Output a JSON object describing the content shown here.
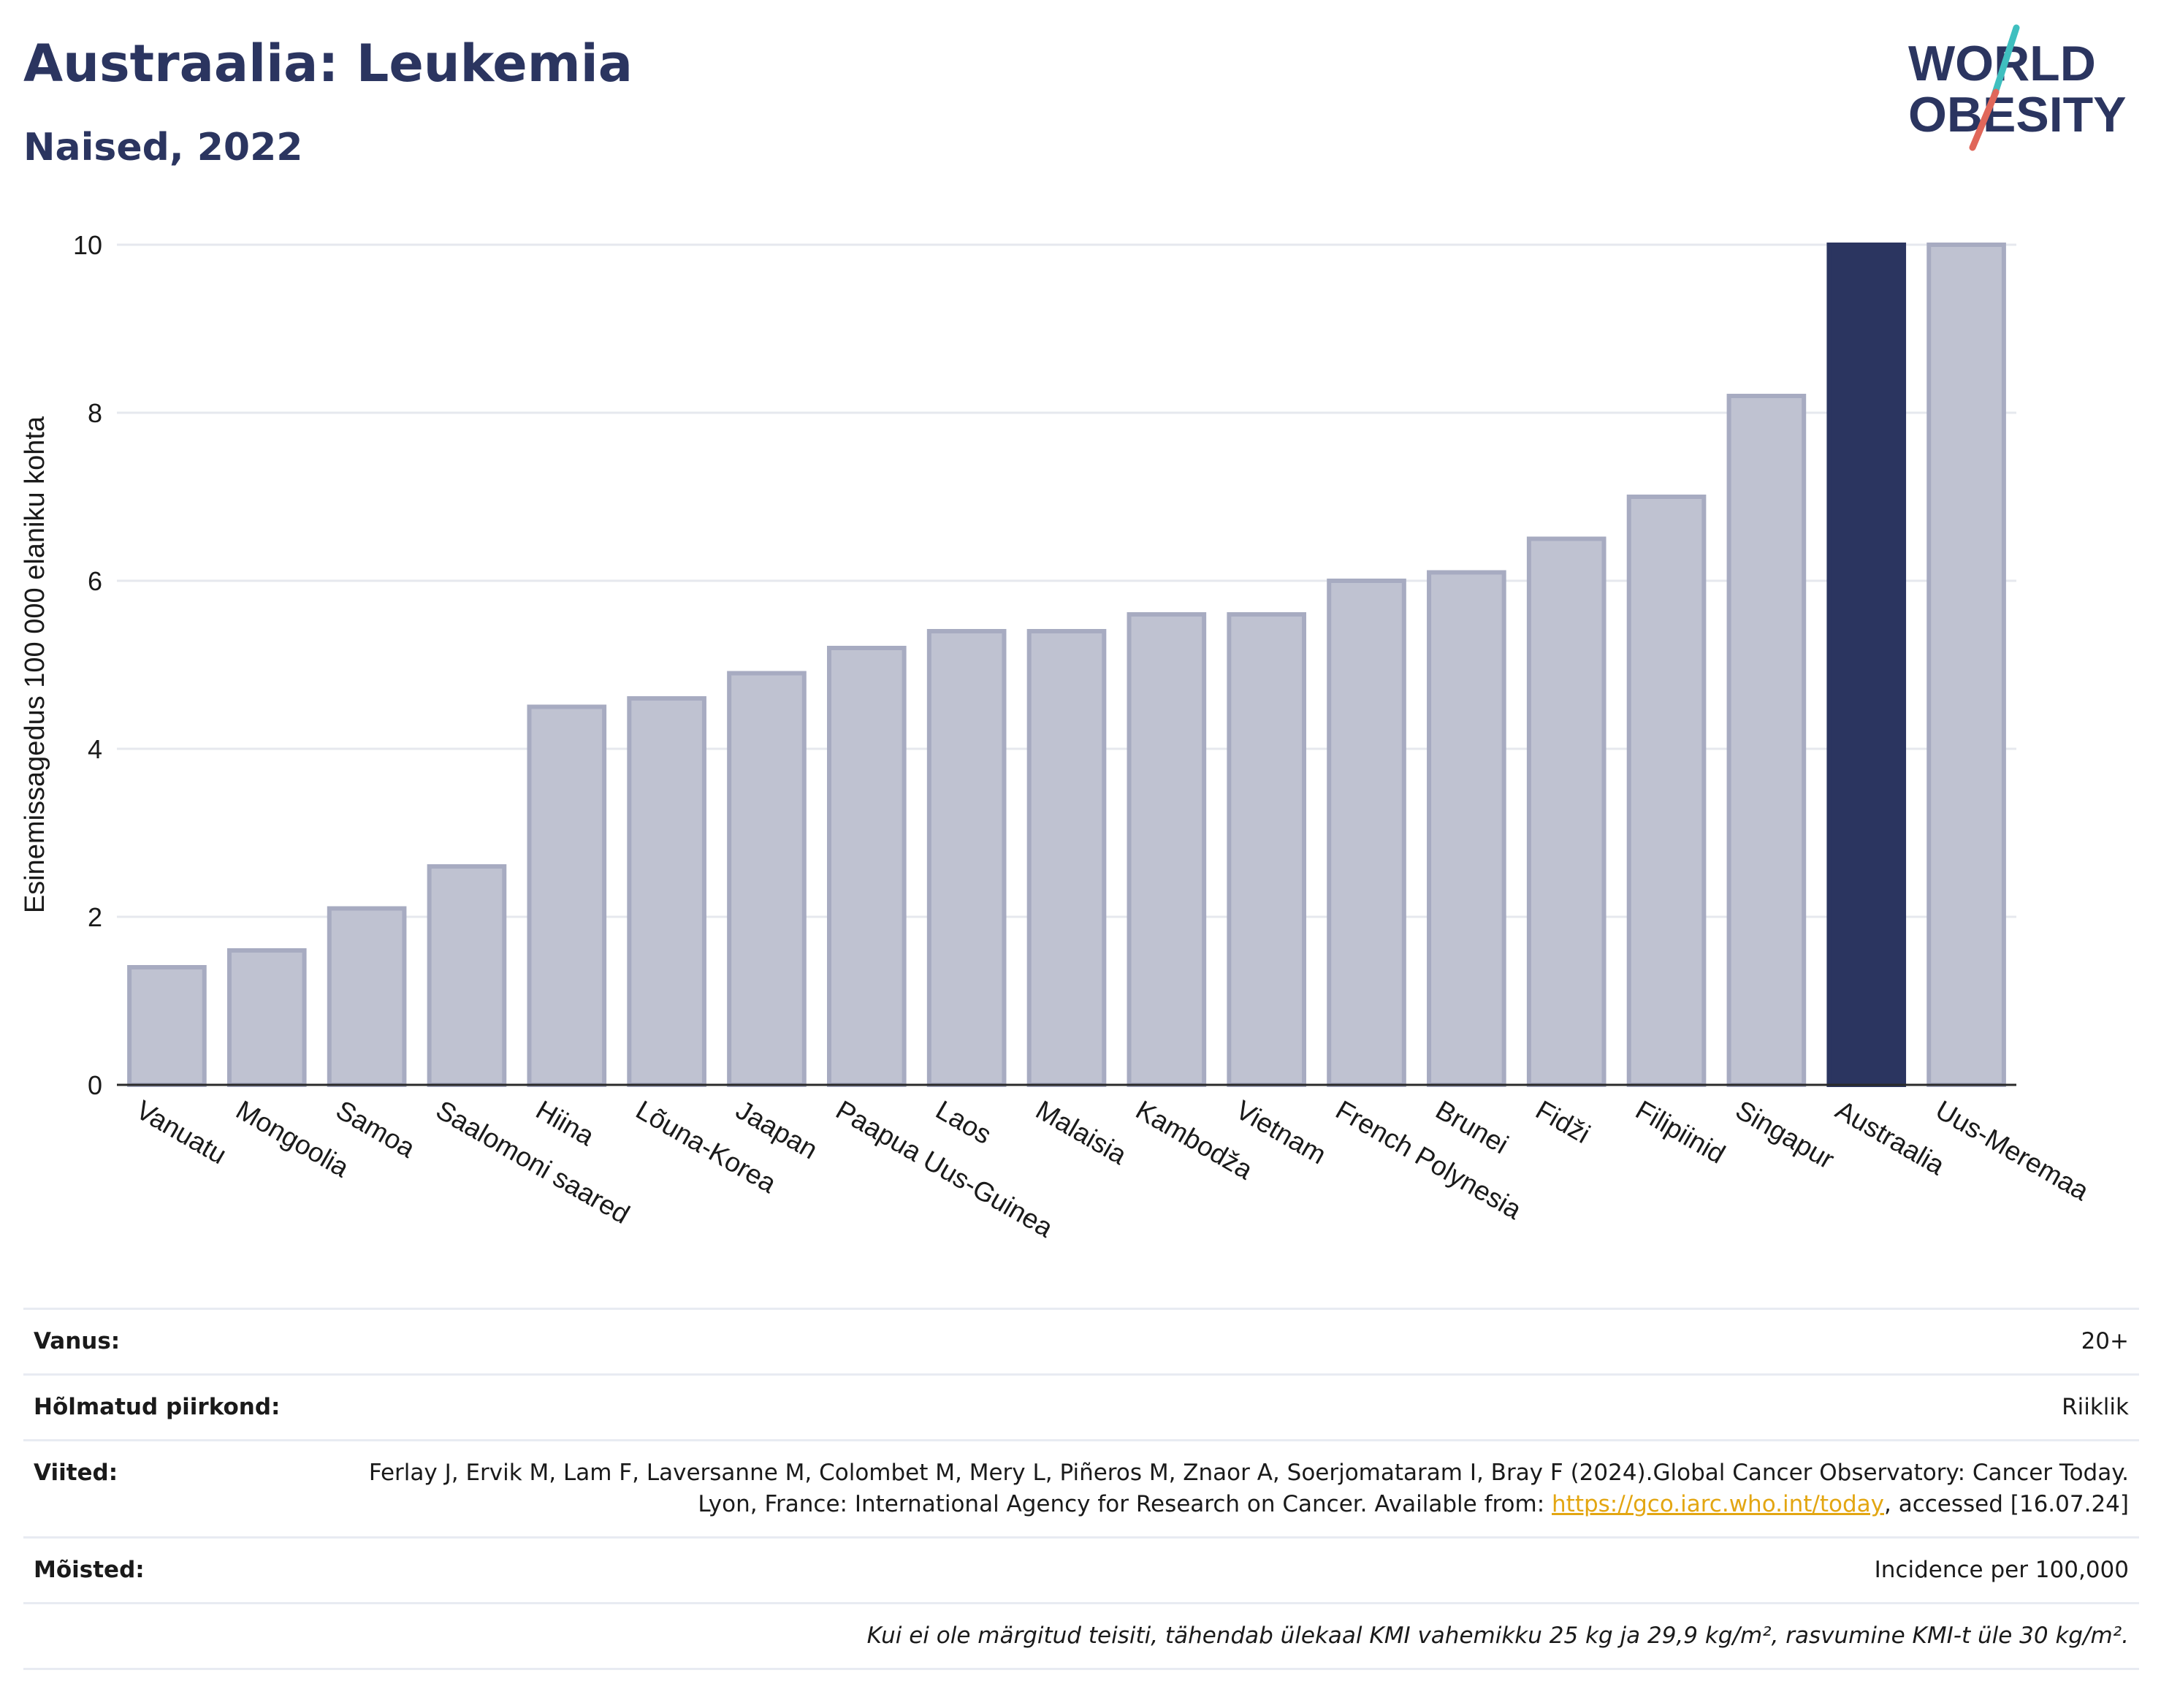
{
  "header": {
    "title": "Austraalia: Leukemia",
    "subtitle": "Naised, 2022"
  },
  "logo": {
    "line1": "WORLD",
    "line2": "OBESITY",
    "colors": {
      "text": "#2b3560",
      "slash_teal": "#3fbfbf",
      "slash_red": "#e0675a"
    }
  },
  "chart_data": {
    "type": "bar",
    "title": "",
    "xlabel": "",
    "ylabel": "Esinemissagedus 100 000 elaniku kohta",
    "ylim": [
      0,
      10
    ],
    "yticks": [
      0,
      2,
      4,
      6,
      8,
      10
    ],
    "grid": true,
    "highlight": "Australia",
    "colors": {
      "default_fill": "#bfc2d1",
      "default_stroke": "#a7abc1",
      "highlight": "#2b3560"
    },
    "categories": [
      "Vanuatu",
      "Mongoolia",
      "Samoa",
      "Saalomoni saared",
      "Hiina",
      "Lõuna-Korea",
      "Jaapan",
      "Paapua Uus-Guinea",
      "Laos",
      "Malaisia",
      "Kambodža",
      "Vietnam",
      "French Polynesia",
      "Brunei",
      "Fidži",
      "Filipiinid",
      "Singapur",
      "Austraalia",
      "Uus-Meremaa"
    ],
    "values": [
      1.4,
      1.6,
      2.1,
      2.6,
      4.5,
      4.6,
      4.9,
      5.2,
      5.4,
      5.4,
      5.6,
      5.6,
      6.0,
      6.1,
      6.5,
      7.0,
      8.2,
      10.0,
      10.0
    ],
    "highlight_index": 17
  },
  "info": {
    "age_label": "Vanus:",
    "age_value": "20+",
    "coverage_label": "Hõlmatud piirkond:",
    "coverage_value": "Riiklik",
    "refs_label": "Viited:",
    "refs_text_1": "Ferlay J, Ervik M, Lam F, Laversanne M, Colombet M, Mery L, Piñeros M, Znaor A, Soerjomataram I, Bray F (2024).Global Cancer Observatory: Cancer Today. Lyon, France: International Agency for Research on Cancer. Available from: ",
    "refs_link": "https://gco.iarc.who.int/today",
    "refs_text_2": ", accessed [16.07.24]",
    "definitions_label": "Mõisted:",
    "definitions_value": "Incidence per 100,000",
    "note": "Kui ei ole märgitud teisiti, tähendab ülekaal KMI vahemikku 25 kg ja 29,9 kg/m², rasvumine KMI-t üle 30 kg/m²."
  }
}
